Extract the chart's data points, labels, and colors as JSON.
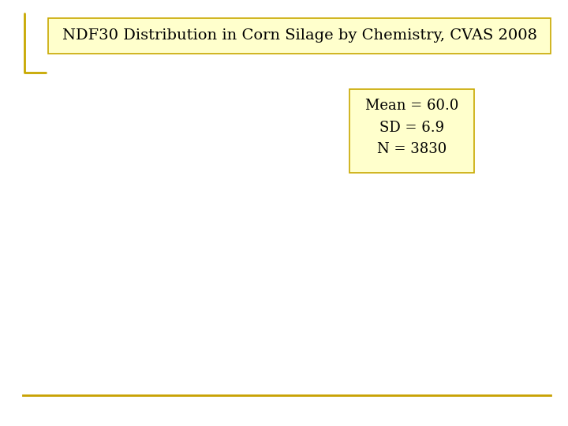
{
  "title": "NDF30 Distribution in Corn Silage by Chemistry, CVAS 2008",
  "title_bg_color": "#FFFFCC",
  "title_border_color": "#C8A800",
  "title_fontsize": 14,
  "stats_line1": "Mean = 60.0",
  "stats_line2": "SD = 6.9",
  "stats_line3": "N = 3830",
  "stats_bg_color": "#FFFFCC",
  "stats_border_color": "#C8A800",
  "stats_fontsize": 13,
  "bottom_line_color": "#C8A000",
  "background_color": "#FFFFFF",
  "bracket_color": "#C8A800"
}
